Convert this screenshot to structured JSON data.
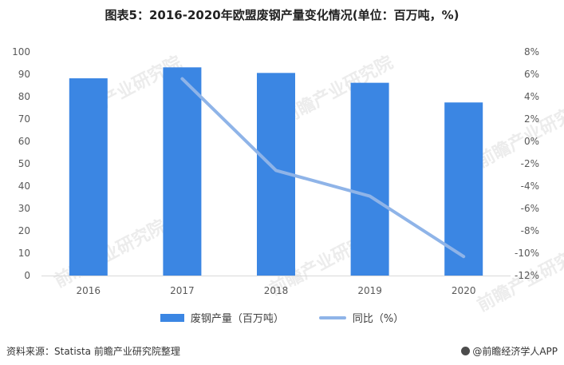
{
  "title": "图表5：2016-2020年欧盟废钢产量变化情况(单位：百万吨，%)",
  "legend": {
    "bar_label": "废钢产量（百万吨）",
    "line_label": "同比（%）"
  },
  "footer": {
    "source": "资料来源：Statista 前瞻产业研究院整理",
    "brand": "@前瞻经济学人APP"
  },
  "watermark_text": "前瞻产业研究院",
  "colors": {
    "bar": "#3b86e3",
    "line": "#8fb4e8",
    "grid": "#d9d9d9"
  },
  "chart_data": {
    "type": "bar",
    "categories": [
      "2016",
      "2017",
      "2018",
      "2019",
      "2020"
    ],
    "series": [
      {
        "name": "废钢产量（百万吨）",
        "type": "bar",
        "axis": "left",
        "values": [
          88.2,
          93.1,
          90.6,
          86.2,
          77.4
        ]
      },
      {
        "name": "同比（%）",
        "type": "line",
        "axis": "right",
        "values": [
          null,
          5.6,
          -2.6,
          -4.9,
          -10.3
        ]
      }
    ],
    "y_left": {
      "ylim": [
        0,
        100
      ],
      "ticks": [
        0,
        10,
        20,
        30,
        40,
        50,
        60,
        70,
        80,
        90,
        100
      ]
    },
    "y_right": {
      "ylim": [
        -12,
        8
      ],
      "ticks": [
        "-12%",
        "-10%",
        "-8%",
        "-6%",
        "-4%",
        "-2%",
        "0%",
        "2%",
        "4%",
        "6%",
        "8%"
      ]
    },
    "grid": false,
    "legend_position": "bottom"
  }
}
